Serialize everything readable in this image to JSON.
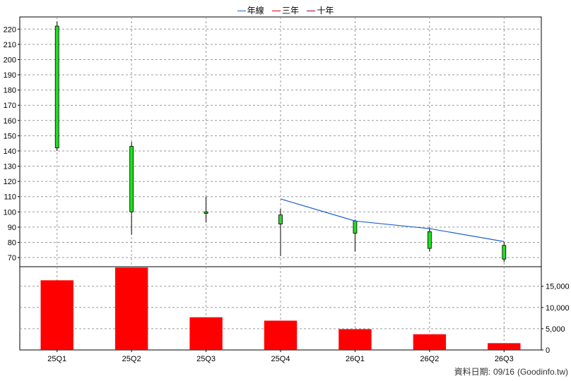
{
  "legend": [
    {
      "label": "年線",
      "color": "#1f5fd0"
    },
    {
      "label": "三年",
      "color": "#e00000"
    },
    {
      "label": "十年",
      "color": "#900040"
    }
  ],
  "source_note": {
    "label": "資料日期:",
    "date": "09/16",
    "site": "(Goodinfo.tw)"
  },
  "chart_data": [
    {
      "type": "candlestick",
      "title": "",
      "categories": [
        "25Q1",
        "25Q2",
        "25Q3",
        "25Q4",
        "26Q1",
        "26Q2",
        "26Q3"
      ],
      "ylim": [
        64,
        228
      ],
      "y_ticks": [
        70,
        80,
        90,
        100,
        110,
        120,
        130,
        140,
        150,
        160,
        170,
        180,
        190,
        200,
        210,
        220
      ],
      "grid": true,
      "candles": [
        {
          "x": "25Q1",
          "open": 142,
          "high": 225,
          "low": 140,
          "close": 222
        },
        {
          "x": "25Q2",
          "open": 100,
          "high": 146,
          "low": 85,
          "close": 143
        },
        {
          "x": "25Q3",
          "open": 99,
          "high": 110,
          "low": 93,
          "close": 100
        },
        {
          "x": "25Q4",
          "open": 92,
          "high": 102,
          "low": 71,
          "close": 98
        },
        {
          "x": "26Q1",
          "open": 86,
          "high": 95,
          "low": 74,
          "close": 94
        },
        {
          "x": "26Q2",
          "open": 76,
          "high": 90,
          "low": 74,
          "close": 87
        },
        {
          "x": "26Q3",
          "open": 69,
          "high": 80,
          "low": 67,
          "close": 78
        }
      ],
      "series": [
        {
          "name": "年線",
          "color": "#1f5fd0",
          "points": [
            [
              "25Q4",
              108.5
            ],
            [
              "26Q1",
              94
            ],
            [
              "26Q2",
              89
            ],
            [
              "26Q3",
              80.5
            ]
          ]
        }
      ],
      "candle_color": "#22dd22"
    },
    {
      "type": "bar",
      "categories": [
        "25Q1",
        "25Q2",
        "25Q3",
        "25Q4",
        "26Q1",
        "26Q2",
        "26Q3"
      ],
      "values": [
        16400,
        19400,
        7700,
        6900,
        4900,
        3700,
        1600
      ],
      "ylim": [
        0,
        19600
      ],
      "y_ticks": [
        0,
        5000,
        10000,
        15000
      ],
      "y_tick_labels": [
        "0",
        "5,000",
        "10,000",
        "15,000"
      ],
      "grid": true,
      "bar_color": "#ff0000"
    }
  ]
}
